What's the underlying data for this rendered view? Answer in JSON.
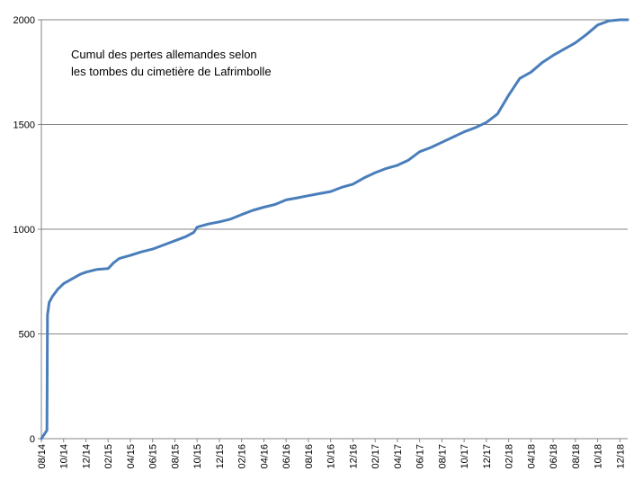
{
  "chart_data": {
    "type": "line",
    "title": "",
    "xlabel": "",
    "ylabel": "",
    "annotation": {
      "lines": [
        "Cumul des pertes allemandes selon",
        "les tombes du cimetière de Lafrimbolle"
      ]
    },
    "ylim": [
      0,
      2000
    ],
    "y_ticks": [
      0,
      500,
      1000,
      1500,
      2000
    ],
    "y_tick_labels": [
      "0",
      "500",
      "1000",
      "1500",
      "2000"
    ],
    "x_range_months": [
      0,
      52.7
    ],
    "x_ticks": [
      0,
      2,
      4,
      6,
      8,
      10,
      12,
      14,
      16,
      18,
      20,
      22,
      24,
      26,
      28,
      30,
      32,
      34,
      36,
      38,
      40,
      42,
      44,
      46,
      48,
      50,
      52
    ],
    "x_tick_labels": [
      "08/14",
      "10/14",
      "12/14",
      "02/15",
      "04/15",
      "06/15",
      "08/15",
      "10/15",
      "12/15",
      "02/16",
      "04/16",
      "06/16",
      "08/16",
      "10/16",
      "12/16",
      "02/17",
      "04/17",
      "06/17",
      "08/17",
      "10/17",
      "12/17",
      "02/18",
      "04/18",
      "06/18",
      "08/18",
      "10/18",
      "12/18"
    ],
    "grid": true,
    "legend": "none",
    "series": [
      {
        "color": "#4a7ebb",
        "x": [
          0,
          0.5,
          0.55,
          0.7,
          1.0,
          1.5,
          2.0,
          2.5,
          3.0,
          3.5,
          4.0,
          5.0,
          6.0,
          6.5,
          7.0,
          8.0,
          9.0,
          10.0,
          11.0,
          12.0,
          13.0,
          13.7,
          14.0,
          15.0,
          16.0,
          17.0,
          18.0,
          19.0,
          20.0,
          21.0,
          22.0,
          23.0,
          24.0,
          25.0,
          26.0,
          27.0,
          28.0,
          29.0,
          30.0,
          31.0,
          32.0,
          33.0,
          34.0,
          35.0,
          36.0,
          37.0,
          38.0,
          39.0,
          40.0,
          41.0,
          42.0,
          43.0,
          44.0,
          45.0,
          46.0,
          47.0,
          48.0,
          49.0,
          50.0,
          51.0,
          52.0,
          52.7
        ],
        "y": [
          0,
          40,
          590,
          650,
          680,
          715,
          740,
          755,
          770,
          785,
          795,
          808,
          812,
          840,
          860,
          875,
          892,
          905,
          925,
          945,
          965,
          985,
          1010,
          1025,
          1035,
          1048,
          1070,
          1090,
          1105,
          1118,
          1140,
          1150,
          1160,
          1170,
          1180,
          1200,
          1215,
          1245,
          1270,
          1290,
          1305,
          1330,
          1370,
          1390,
          1415,
          1440,
          1465,
          1485,
          1510,
          1550,
          1640,
          1720,
          1750,
          1795,
          1830,
          1860,
          1890,
          1930,
          1975,
          1995,
          2000,
          2000
        ]
      }
    ]
  }
}
